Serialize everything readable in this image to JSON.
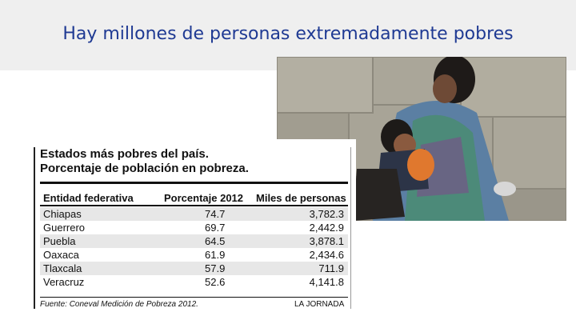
{
  "slide": {
    "title": "Hay millones de personas extremadamente pobres"
  },
  "table": {
    "heading_line1": "Estados más pobres del país.",
    "heading_line2": "Porcentaje de población en pobreza.",
    "columns": [
      "Entidad federativa",
      "Porcentaje 2012",
      "Miles de personas"
    ],
    "rows": [
      {
        "state": "Chiapas",
        "pct": "74.7",
        "thousands": "3,782.3"
      },
      {
        "state": "Guerrero",
        "pct": "69.7",
        "thousands": "2,442.9"
      },
      {
        "state": "Puebla",
        "pct": "64.5",
        "thousands": "3,878.1"
      },
      {
        "state": "Oaxaca",
        "pct": "61.9",
        "thousands": "2,434.6"
      },
      {
        "state": "Tlaxcala",
        "pct": "57.9",
        "thousands": "711.9"
      },
      {
        "state": "Veracruz",
        "pct": "52.6",
        "thousands": "4,141.8"
      }
    ],
    "source": "Fuente: Coneval Medición de Pobreza 2012.",
    "publisher": "LA JORNADA"
  }
}
